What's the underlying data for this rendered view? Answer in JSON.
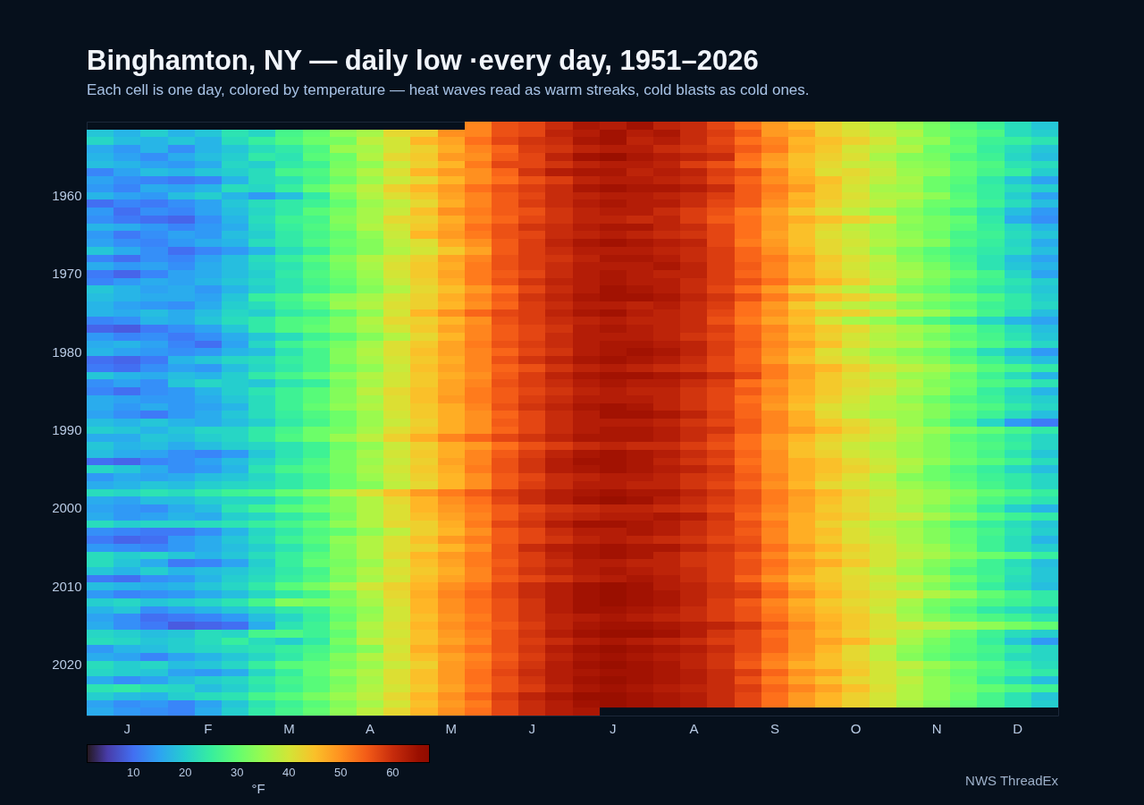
{
  "chart_data": {
    "type": "heatmap",
    "title": "Binghamton, NY — daily low ·every day, 1951–2026",
    "subtitle": "Each cell is one day, colored by temperature — heat waves read as warm streaks, cold blasts as cold ones.",
    "categories": [
      null,
      "J",
      null,
      null,
      "F",
      null,
      null,
      "M",
      null,
      null,
      "A",
      null,
      null,
      "M",
      null,
      null,
      "J",
      null,
      null,
      "J",
      null,
      null,
      "A",
      null,
      null,
      "S",
      null,
      null,
      "O",
      null,
      null,
      "N",
      null,
      null,
      "D",
      null
    ],
    "y_categories": [
      null,
      null,
      null,
      null,
      null,
      null,
      null,
      null,
      null,
      "1960",
      null,
      null,
      null,
      null,
      null,
      null,
      null,
      null,
      null,
      "1970",
      null,
      null,
      null,
      null,
      null,
      null,
      null,
      null,
      null,
      "1980",
      null,
      null,
      null,
      null,
      null,
      null,
      null,
      null,
      null,
      "1990",
      null,
      null,
      null,
      null,
      null,
      null,
      null,
      null,
      null,
      "2000",
      null,
      null,
      null,
      null,
      null,
      null,
      null,
      null,
      null,
      "2010",
      null,
      null,
      null,
      null,
      null,
      null,
      null,
      null,
      null,
      "2020",
      null,
      null,
      null,
      null,
      null,
      null
    ],
    "cells": [
      [
        null,
        null,
        null,
        null,
        null,
        null,
        null,
        null,
        null,
        null,
        null,
        null,
        null,
        null,
        51,
        56,
        57,
        60,
        63,
        62,
        64,
        61,
        60,
        57,
        53,
        49,
        46,
        43,
        40,
        37,
        35,
        32,
        29,
        26,
        22,
        19
      ],
      [
        19,
        17,
        20,
        17,
        19,
        23,
        21,
        27,
        30,
        34,
        36,
        42,
        43,
        50,
        51,
        56,
        57,
        61,
        62,
        64,
        62,
        63,
        60,
        58,
        55,
        49,
        48,
        43,
        41,
        38,
        37,
        32,
        30,
        28,
        22,
        20
      ],
      [
        21,
        18,
        17,
        19,
        17,
        22,
        25,
        28,
        31,
        32,
        38,
        40,
        46,
        48,
        53,
        57,
        59,
        60,
        63,
        64,
        61,
        62,
        60,
        57,
        53,
        51,
        46,
        45,
        43,
        40,
        35,
        34,
        29,
        26,
        25,
        23
      ],
      [
        16,
        14,
        17,
        13,
        17,
        19,
        22,
        24,
        28,
        35,
        36,
        40,
        43,
        47,
        51,
        54,
        58,
        59,
        61,
        62,
        62,
        60,
        59,
        58,
        55,
        52,
        47,
        44,
        40,
        38,
        37,
        31,
        30,
        25,
        22,
        19
      ],
      [
        17,
        15,
        13,
        16,
        18,
        20,
        24,
        23,
        29,
        31,
        37,
        42,
        44,
        49,
        50,
        55,
        57,
        61,
        64,
        65,
        63,
        62,
        61,
        60,
        53,
        49,
        45,
        43,
        41,
        36,
        33,
        32,
        28,
        26,
        21,
        18
      ],
      [
        18,
        17,
        15,
        14,
        16,
        21,
        20,
        24,
        26,
        32,
        34,
        39,
        43,
        46,
        52,
        57,
        57,
        59,
        61,
        62,
        62,
        61,
        58,
        56,
        52,
        48,
        45,
        42,
        39,
        38,
        34,
        33,
        30,
        28,
        23,
        22
      ],
      [
        12,
        15,
        18,
        17,
        19,
        20,
        22,
        27,
        28,
        33,
        37,
        41,
        46,
        49,
        50,
        54,
        59,
        62,
        63,
        63,
        61,
        62,
        61,
        58,
        56,
        51,
        46,
        41,
        42,
        39,
        35,
        34,
        30,
        27,
        25,
        20
      ],
      [
        15,
        13,
        12,
        11,
        12,
        17,
        22,
        23,
        27,
        31,
        35,
        39,
        42,
        46,
        50,
        53,
        56,
        58,
        61,
        62,
        62,
        61,
        60,
        57,
        54,
        50,
        47,
        45,
        41,
        38,
        36,
        31,
        29,
        24,
        19,
        15
      ],
      [
        14,
        12,
        16,
        15,
        17,
        22,
        21,
        25,
        30,
        34,
        38,
        43,
        46,
        49,
        53,
        56,
        58,
        60,
        63,
        64,
        63,
        63,
        62,
        60,
        55,
        52,
        49,
        44,
        40,
        36,
        35,
        31,
        28,
        25,
        22,
        20
      ],
      [
        17,
        15,
        14,
        18,
        20,
        17,
        14,
        18,
        24,
        32,
        37,
        41,
        44,
        48,
        51,
        55,
        57,
        60,
        61,
        62,
        62,
        61,
        60,
        58,
        55,
        51,
        46,
        44,
        41,
        37,
        37,
        34,
        29,
        25,
        20,
        15
      ],
      [
        10,
        12,
        11,
        13,
        15,
        19,
        22,
        24,
        26,
        30,
        35,
        38,
        42,
        47,
        51,
        55,
        58,
        60,
        62,
        63,
        62,
        62,
        60,
        57,
        55,
        50,
        47,
        43,
        40,
        38,
        35,
        31,
        30,
        26,
        22,
        18
      ],
      [
        14,
        10,
        13,
        12,
        15,
        18,
        21,
        24,
        29,
        32,
        36,
        39,
        45,
        50,
        52,
        55,
        56,
        59,
        61,
        62,
        62,
        60,
        58,
        56,
        52,
        48,
        44,
        41,
        38,
        35,
        33,
        30,
        27,
        23,
        18,
        14
      ],
      [
        13,
        11,
        10,
        9,
        13,
        17,
        22,
        26,
        27,
        33,
        36,
        42,
        43,
        47,
        51,
        54,
        57,
        59,
        61,
        61,
        60,
        61,
        58,
        55,
        53,
        49,
        47,
        45,
        43,
        40,
        34,
        32,
        30,
        24,
        16,
        13
      ],
      [
        17,
        16,
        14,
        12,
        14,
        16,
        21,
        25,
        28,
        32,
        37,
        40,
        44,
        48,
        53,
        56,
        59,
        60,
        62,
        63,
        63,
        61,
        60,
        57,
        53,
        49,
        45,
        42,
        38,
        36,
        33,
        32,
        29,
        25,
        21,
        17
      ],
      [
        14,
        11,
        13,
        15,
        14,
        18,
        20,
        24,
        27,
        30,
        34,
        39,
        46,
        49,
        52,
        56,
        57,
        60,
        61,
        62,
        61,
        60,
        59,
        57,
        53,
        48,
        45,
        41,
        39,
        36,
        34,
        31,
        27,
        26,
        22,
        19
      ],
      [
        15,
        13,
        12,
        14,
        16,
        17,
        22,
        24,
        28,
        31,
        33,
        38,
        41,
        47,
        50,
        55,
        58,
        61,
        63,
        64,
        63,
        62,
        61,
        57,
        52,
        49,
        45,
        42,
        40,
        37,
        35,
        33,
        28,
        25,
        21,
        16
      ],
      [
        19,
        16,
        13,
        10,
        12,
        14,
        17,
        22,
        25,
        30,
        33,
        37,
        40,
        44,
        48,
        55,
        58,
        60,
        62,
        62,
        62,
        61,
        60,
        58,
        54,
        50,
        46,
        42,
        39,
        35,
        32,
        29,
        26,
        24,
        22,
        18
      ],
      [
        12,
        10,
        13,
        12,
        15,
        18,
        22,
        25,
        29,
        33,
        37,
        40,
        43,
        48,
        51,
        56,
        58,
        59,
        61,
        63,
        63,
        62,
        60,
        58,
        54,
        52,
        48,
        44,
        41,
        38,
        33,
        30,
        27,
        23,
        18,
        15
      ],
      [
        16,
        14,
        15,
        13,
        16,
        18,
        21,
        23,
        27,
        32,
        36,
        41,
        44,
        47,
        52,
        56,
        58,
        60,
        62,
        62,
        62,
        63,
        61,
        58,
        55,
        51,
        47,
        43,
        40,
        37,
        35,
        32,
        28,
        23,
        19,
        17
      ],
      [
        11,
        9,
        12,
        15,
        16,
        18,
        20,
        24,
        28,
        31,
        35,
        40,
        44,
        48,
        52,
        55,
        57,
        60,
        62,
        63,
        62,
        61,
        61,
        58,
        54,
        51,
        47,
        44,
        41,
        38,
        36,
        33,
        30,
        27,
        21,
        15
      ],
      [
        12,
        14,
        16,
        15,
        17,
        19,
        21,
        23,
        27,
        30,
        34,
        39,
        43,
        47,
        52,
        56,
        59,
        61,
        62,
        63,
        62,
        62,
        60,
        58,
        56,
        53,
        49,
        46,
        43,
        39,
        34,
        32,
        28,
        26,
        23,
        20
      ],
      [
        19,
        17,
        15,
        16,
        14,
        17,
        20,
        23,
        26,
        29,
        33,
        37,
        42,
        45,
        49,
        53,
        57,
        60,
        62,
        64,
        63,
        62,
        60,
        57,
        53,
        49,
        44,
        41,
        38,
        35,
        32,
        30,
        27,
        24,
        22,
        19
      ],
      [
        18,
        17,
        16,
        16,
        15,
        19,
        25,
        27,
        31,
        34,
        36,
        40,
        43,
        47,
        51,
        55,
        59,
        61,
        63,
        64,
        64,
        63,
        61,
        59,
        56,
        52,
        48,
        45,
        43,
        40,
        36,
        33,
        31,
        28,
        24,
        20
      ],
      [
        17,
        15,
        14,
        13,
        16,
        20,
        22,
        26,
        29,
        35,
        37,
        41,
        43,
        46,
        50,
        54,
        58,
        60,
        62,
        62,
        61,
        62,
        60,
        58,
        53,
        49,
        44,
        40,
        38,
        36,
        33,
        31,
        29,
        26,
        24,
        21
      ],
      [
        17,
        16,
        18,
        16,
        18,
        21,
        20,
        24,
        26,
        30,
        34,
        40,
        46,
        50,
        54,
        57,
        58,
        61,
        63,
        64,
        62,
        61,
        60,
        57,
        53,
        50,
        46,
        44,
        43,
        40,
        37,
        35,
        31,
        27,
        23,
        18
      ],
      [
        12,
        13,
        17,
        16,
        19,
        22,
        24,
        28,
        29,
        33,
        37,
        42,
        43,
        46,
        50,
        56,
        58,
        60,
        61,
        62,
        61,
        61,
        60,
        56,
        52,
        48,
        45,
        40,
        36,
        34,
        31,
        28,
        24,
        21,
        17,
        15
      ],
      [
        9,
        8,
        11,
        13,
        15,
        19,
        24,
        28,
        30,
        33,
        36,
        40,
        44,
        48,
        51,
        55,
        57,
        59,
        62,
        63,
        62,
        61,
        60,
        58,
        54,
        51,
        47,
        44,
        42,
        38,
        36,
        34,
        30,
        26,
        22,
        18
      ],
      [
        14,
        12,
        13,
        11,
        13,
        16,
        19,
        22,
        26,
        29,
        33,
        37,
        42,
        46,
        51,
        55,
        57,
        60,
        62,
        62,
        62,
        61,
        59,
        57,
        54,
        50,
        46,
        43,
        40,
        37,
        35,
        32,
        29,
        27,
        23,
        19
      ],
      [
        16,
        17,
        15,
        12,
        10,
        15,
        21,
        26,
        29,
        32,
        36,
        41,
        44,
        48,
        52,
        56,
        58,
        60,
        62,
        63,
        63,
        62,
        61,
        58,
        55,
        51,
        48,
        45,
        41,
        38,
        37,
        34,
        31,
        28,
        25,
        21
      ],
      [
        17,
        15,
        14,
        13,
        14,
        17,
        18,
        23,
        27,
        33,
        37,
        41,
        45,
        48,
        51,
        54,
        57,
        59,
        62,
        63,
        64,
        63,
        61,
        58,
        54,
        50,
        46,
        41,
        38,
        35,
        33,
        31,
        27,
        22,
        18,
        14
      ],
      [
        10,
        9,
        11,
        17,
        19,
        21,
        22,
        25,
        27,
        33,
        36,
        40,
        44,
        47,
        51,
        56,
        59,
        61,
        63,
        64,
        63,
        62,
        60,
        57,
        54,
        49,
        45,
        42,
        40,
        37,
        35,
        33,
        29,
        26,
        21,
        18
      ],
      [
        11,
        10,
        13,
        15,
        14,
        18,
        21,
        24,
        27,
        31,
        34,
        39,
        45,
        48,
        51,
        54,
        56,
        59,
        61,
        62,
        61,
        60,
        59,
        57,
        55,
        52,
        48,
        46,
        43,
        40,
        38,
        36,
        33,
        29,
        27,
        24
      ],
      [
        19,
        17,
        16,
        18,
        17,
        20,
        24,
        27,
        30,
        34,
        37,
        40,
        44,
        47,
        50,
        55,
        58,
        61,
        63,
        64,
        64,
        63,
        62,
        60,
        57,
        52,
        48,
        44,
        41,
        38,
        35,
        34,
        30,
        26,
        22,
        17
      ],
      [
        13,
        15,
        13,
        19,
        21,
        20,
        19,
        23,
        25,
        32,
        36,
        40,
        44,
        48,
        51,
        56,
        58,
        60,
        62,
        63,
        62,
        62,
        60,
        58,
        53,
        50,
        47,
        44,
        42,
        40,
        37,
        33,
        31,
        28,
        26,
        23
      ],
      [
        12,
        10,
        13,
        14,
        17,
        20,
        23,
        26,
        29,
        33,
        38,
        42,
        45,
        48,
        52,
        55,
        57,
        59,
        61,
        62,
        61,
        61,
        59,
        57,
        55,
        51,
        47,
        44,
        41,
        39,
        36,
        34,
        30,
        25,
        21,
        17
      ],
      [
        16,
        15,
        14,
        14,
        16,
        19,
        22,
        26,
        29,
        33,
        36,
        41,
        45,
        49,
        52,
        55,
        58,
        60,
        62,
        62,
        62,
        61,
        59,
        57,
        53,
        50,
        46,
        43,
        40,
        37,
        34,
        31,
        28,
        26,
        22,
        20
      ],
      [
        16,
        14,
        16,
        14,
        15,
        17,
        22,
        26,
        30,
        34,
        37,
        41,
        44,
        47,
        51,
        56,
        59,
        61,
        63,
        64,
        63,
        61,
        59,
        57,
        54,
        49,
        45,
        41,
        39,
        37,
        36,
        33,
        30,
        28,
        24,
        21
      ],
      [
        15,
        13,
        11,
        14,
        16,
        19,
        22,
        25,
        28,
        31,
        35,
        40,
        44,
        47,
        50,
        54,
        57,
        60,
        62,
        64,
        64,
        63,
        61,
        58,
        54,
        51,
        47,
        42,
        38,
        36,
        35,
        33,
        29,
        26,
        22,
        18
      ],
      [
        18,
        17,
        19,
        17,
        16,
        18,
        20,
        24,
        27,
        31,
        35,
        39,
        43,
        47,
        50,
        55,
        57,
        60,
        62,
        62,
        62,
        61,
        59,
        57,
        55,
        51,
        47,
        44,
        42,
        39,
        35,
        31,
        27,
        21,
        14,
        11
      ],
      [
        20,
        19,
        17,
        19,
        21,
        21,
        24,
        27,
        31,
        32,
        36,
        41,
        44,
        47,
        50,
        54,
        57,
        60,
        62,
        63,
        63,
        62,
        60,
        59,
        55,
        51,
        49,
        46,
        43,
        40,
        37,
        35,
        32,
        30,
        27,
        24
      ],
      [
        16,
        16,
        19,
        18,
        20,
        21,
        24,
        28,
        31,
        35,
        38,
        43,
        47,
        51,
        54,
        57,
        59,
        61,
        63,
        63,
        63,
        62,
        60,
        57,
        53,
        49,
        46,
        43,
        41,
        39,
        36,
        33,
        29,
        27,
        24,
        21
      ],
      [
        19,
        17,
        18,
        16,
        18,
        20,
        21,
        23,
        26,
        31,
        34,
        39,
        43,
        47,
        49,
        53,
        56,
        58,
        60,
        61,
        60,
        60,
        58,
        56,
        53,
        49,
        45,
        42,
        39,
        37,
        35,
        33,
        30,
        28,
        25,
        21
      ],
      [
        18,
        16,
        15,
        13,
        12,
        14,
        19,
        23,
        26,
        32,
        36,
        40,
        44,
        47,
        51,
        55,
        58,
        61,
        63,
        64,
        63,
        62,
        60,
        58,
        54,
        50,
        45,
        43,
        40,
        38,
        35,
        33,
        30,
        27,
        23,
        19
      ],
      [
        10,
        9,
        12,
        13,
        15,
        18,
        21,
        24,
        28,
        32,
        35,
        39,
        43,
        48,
        51,
        56,
        59,
        62,
        64,
        64,
        63,
        61,
        59,
        57,
        53,
        50,
        47,
        45,
        42,
        39,
        37,
        34,
        31,
        29,
        26,
        22
      ],
      [
        21,
        19,
        16,
        13,
        14,
        17,
        23,
        27,
        29,
        32,
        36,
        40,
        44,
        47,
        52,
        56,
        59,
        62,
        63,
        64,
        63,
        62,
        61,
        59,
        54,
        50,
        47,
        45,
        43,
        40,
        36,
        31,
        28,
        25,
        21,
        18
      ],
      [
        14,
        16,
        15,
        16,
        18,
        19,
        21,
        24,
        27,
        31,
        35,
        39,
        43,
        46,
        50,
        55,
        57,
        60,
        61,
        62,
        62,
        61,
        59,
        58,
        55,
        51,
        47,
        44,
        41,
        37,
        33,
        31,
        29,
        26,
        24,
        21
      ],
      [
        16,
        17,
        19,
        18,
        20,
        21,
        22,
        24,
        27,
        31,
        33,
        38,
        42,
        46,
        50,
        55,
        58,
        60,
        62,
        62,
        61,
        61,
        59,
        57,
        54,
        50,
        46,
        42,
        40,
        38,
        35,
        33,
        30,
        27,
        24,
        21
      ],
      [
        22,
        21,
        23,
        22,
        24,
        26,
        27,
        30,
        33,
        37,
        41,
        45,
        49,
        52,
        55,
        58,
        60,
        62,
        63,
        64,
        63,
        63,
        61,
        59,
        56,
        52,
        49,
        46,
        43,
        40,
        37,
        35,
        33,
        30,
        28,
        25
      ],
      [
        16,
        15,
        18,
        18,
        20,
        21,
        21,
        25,
        29,
        33,
        37,
        42,
        46,
        50,
        53,
        57,
        60,
        62,
        64,
        65,
        64,
        62,
        60,
        58,
        56,
        52,
        48,
        45,
        42,
        39,
        37,
        35,
        32,
        28,
        25,
        23
      ],
      [
        15,
        14,
        13,
        16,
        18,
        23,
        26,
        29,
        31,
        33,
        37,
        41,
        46,
        49,
        52,
        55,
        57,
        59,
        60,
        61,
        61,
        60,
        59,
        57,
        55,
        51,
        48,
        44,
        42,
        39,
        36,
        33,
        30,
        25,
        20,
        17
      ],
      [
        16,
        14,
        15,
        17,
        16,
        20,
        21,
        24,
        27,
        32,
        37,
        41,
        45,
        48,
        51,
        55,
        58,
        60,
        61,
        62,
        62,
        63,
        62,
        59,
        54,
        50,
        47,
        45,
        43,
        40,
        39,
        36,
        33,
        29,
        26,
        24
      ],
      [
        22,
        20,
        21,
        21,
        22,
        23,
        25,
        27,
        30,
        34,
        37,
        42,
        43,
        47,
        52,
        57,
        59,
        62,
        64,
        64,
        63,
        62,
        60,
        58,
        56,
        52,
        47,
        43,
        40,
        37,
        35,
        32,
        28,
        25,
        22,
        19
      ],
      [
        13,
        12,
        11,
        11,
        13,
        17,
        21,
        24,
        28,
        30,
        34,
        38,
        43,
        46,
        50,
        55,
        57,
        60,
        62,
        62,
        63,
        62,
        60,
        58,
        55,
        51,
        47,
        45,
        41,
        38,
        36,
        33,
        30,
        27,
        23,
        20
      ],
      [
        11,
        9,
        10,
        14,
        16,
        19,
        22,
        26,
        29,
        34,
        37,
        41,
        45,
        49,
        52,
        55,
        57,
        59,
        61,
        62,
        61,
        60,
        59,
        57,
        56,
        51,
        47,
        44,
        41,
        39,
        36,
        33,
        30,
        26,
        22,
        17
      ],
      [
        14,
        13,
        12,
        14,
        16,
        18,
        20,
        23,
        27,
        33,
        37,
        41,
        43,
        46,
        50,
        56,
        60,
        62,
        63,
        64,
        63,
        63,
        61,
        59,
        57,
        53,
        49,
        46,
        43,
        40,
        37,
        35,
        31,
        26,
        22,
        20
      ],
      [
        22,
        20,
        21,
        19,
        17,
        19,
        22,
        25,
        29,
        33,
        37,
        42,
        46,
        49,
        52,
        56,
        58,
        61,
        63,
        64,
        63,
        61,
        59,
        58,
        55,
        51,
        47,
        44,
        42,
        40,
        38,
        36,
        33,
        31,
        29,
        25
      ],
      [
        22,
        19,
        16,
        11,
        12,
        15,
        20,
        25,
        30,
        32,
        35,
        40,
        45,
        48,
        52,
        55,
        58,
        60,
        62,
        62,
        61,
        61,
        59,
        58,
        56,
        53,
        49,
        47,
        44,
        40,
        36,
        33,
        30,
        26,
        22,
        18
      ],
      [
        19,
        17,
        20,
        17,
        18,
        19,
        21,
        24,
        27,
        33,
        37,
        41,
        44,
        47,
        51,
        56,
        59,
        61,
        62,
        63,
        62,
        61,
        60,
        58,
        56,
        52,
        48,
        44,
        41,
        38,
        35,
        32,
        28,
        26,
        23,
        19
      ],
      [
        11,
        10,
        13,
        14,
        17,
        20,
        22,
        25,
        28,
        32,
        36,
        40,
        45,
        48,
        51,
        55,
        57,
        59,
        61,
        62,
        63,
        62,
        60,
        58,
        54,
        50,
        46,
        44,
        42,
        40,
        38,
        35,
        31,
        27,
        22,
        19
      ],
      [
        18,
        17,
        16,
        17,
        19,
        21,
        24,
        29,
        32,
        36,
        40,
        43,
        46,
        50,
        53,
        57,
        60,
        62,
        64,
        65,
        64,
        62,
        61,
        59,
        57,
        53,
        48,
        45,
        42,
        39,
        36,
        33,
        29,
        25,
        21,
        18
      ],
      [
        14,
        12,
        13,
        14,
        16,
        18,
        21,
        24,
        27,
        32,
        37,
        42,
        47,
        51,
        54,
        57,
        60,
        62,
        64,
        65,
        64,
        63,
        61,
        59,
        58,
        54,
        50,
        46,
        43,
        41,
        40,
        37,
        34,
        30,
        27,
        24
      ],
      [
        20,
        21,
        19,
        20,
        21,
        23,
        27,
        33,
        32,
        33,
        36,
        41,
        46,
        50,
        53,
        56,
        59,
        62,
        64,
        65,
        64,
        63,
        61,
        58,
        55,
        51,
        47,
        44,
        42,
        40,
        36,
        32,
        30,
        28,
        26,
        24
      ],
      [
        17,
        19,
        13,
        15,
        17,
        19,
        21,
        24,
        26,
        31,
        34,
        40,
        46,
        50,
        53,
        56,
        59,
        62,
        64,
        64,
        63,
        62,
        60,
        58,
        56,
        52,
        48,
        45,
        43,
        39,
        35,
        31,
        28,
        24,
        22,
        20
      ],
      [
        15,
        13,
        10,
        11,
        12,
        14,
        18,
        21,
        25,
        30,
        35,
        40,
        45,
        49,
        52,
        56,
        59,
        61,
        62,
        63,
        62,
        61,
        60,
        58,
        56,
        53,
        49,
        46,
        44,
        41,
        36,
        33,
        30,
        28,
        26,
        23
      ],
      [
        16,
        13,
        11,
        8,
        9,
        10,
        16,
        23,
        26,
        32,
        37,
        41,
        46,
        50,
        53,
        55,
        58,
        61,
        63,
        64,
        64,
        63,
        62,
        61,
        59,
        55,
        51,
        47,
        44,
        41,
        40,
        38,
        36,
        34,
        32,
        30
      ],
      [
        21,
        20,
        18,
        19,
        22,
        21,
        27,
        28,
        26,
        30,
        36,
        40,
        45,
        49,
        52,
        56,
        59,
        62,
        64,
        65,
        65,
        64,
        62,
        59,
        57,
        53,
        50,
        46,
        43,
        40,
        37,
        34,
        30,
        26,
        22,
        20
      ],
      [
        22,
        21,
        19,
        20,
        22,
        25,
        22,
        20,
        24,
        32,
        38,
        41,
        45,
        48,
        51,
        56,
        58,
        60,
        62,
        63,
        62,
        61,
        60,
        58,
        57,
        54,
        50,
        48,
        46,
        42,
        36,
        32,
        29,
        25,
        19,
        14
      ],
      [
        14,
        17,
        18,
        20,
        21,
        22,
        23,
        25,
        27,
        30,
        33,
        40,
        47,
        50,
        53,
        56,
        59,
        62,
        64,
        65,
        64,
        63,
        62,
        60,
        57,
        54,
        50,
        46,
        42,
        38,
        34,
        31,
        29,
        27,
        24,
        21
      ],
      [
        16,
        15,
        12,
        15,
        17,
        19,
        21,
        24,
        28,
        33,
        37,
        41,
        45,
        48,
        51,
        55,
        58,
        61,
        63,
        64,
        63,
        62,
        61,
        59,
        56,
        52,
        49,
        45,
        42,
        38,
        33,
        30,
        28,
        26,
        22,
        21
      ],
      [
        22,
        20,
        21,
        18,
        19,
        21,
        25,
        29,
        30,
        32,
        35,
        39,
        43,
        49,
        52,
        56,
        59,
        62,
        64,
        65,
        64,
        63,
        61,
        59,
        55,
        51,
        47,
        45,
        43,
        40,
        38,
        35,
        32,
        29,
        25,
        22
      ],
      [
        21,
        20,
        19,
        15,
        14,
        16,
        21,
        25,
        30,
        34,
        37,
        41,
        45,
        49,
        53,
        57,
        60,
        62,
        63,
        64,
        64,
        63,
        62,
        60,
        58,
        54,
        50,
        48,
        44,
        40,
        36,
        33,
        30,
        28,
        26,
        24
      ],
      [
        16,
        13,
        15,
        18,
        20,
        21,
        24,
        27,
        29,
        32,
        36,
        41,
        45,
        49,
        53,
        56,
        59,
        62,
        64,
        65,
        64,
        63,
        62,
        60,
        56,
        52,
        48,
        45,
        42,
        40,
        38,
        34,
        31,
        26,
        22,
        18
      ],
      [
        23,
        24,
        22,
        21,
        18,
        20,
        23,
        26,
        29,
        33,
        37,
        40,
        44,
        48,
        52,
        56,
        58,
        61,
        63,
        64,
        63,
        62,
        61,
        60,
        58,
        54,
        51,
        48,
        45,
        41,
        37,
        34,
        32,
        30,
        28,
        26
      ],
      [
        20,
        18,
        17,
        20,
        22,
        23,
        27,
        29,
        32,
        35,
        38,
        42,
        46,
        50,
        54,
        58,
        61,
        63,
        65,
        65,
        64,
        63,
        62,
        60,
        57,
        53,
        49,
        46,
        43,
        40,
        37,
        34,
        31,
        27,
        23,
        19
      ],
      [
        15,
        13,
        14,
        12,
        15,
        19,
        23,
        26,
        29,
        33,
        36,
        40,
        45,
        49,
        52,
        57,
        60,
        62,
        64,
        65,
        64,
        63,
        62,
        60,
        57,
        53,
        49,
        46,
        43,
        40,
        36,
        33,
        30,
        27,
        23,
        20
      ],
      [
        16,
        14,
        13,
        12,
        16,
        20,
        24,
        27,
        30,
        34,
        38,
        42,
        46,
        50,
        53,
        57,
        60,
        62,
        63,
        null,
        null,
        null,
        null,
        null,
        null,
        null,
        null,
        null,
        null,
        null,
        null,
        null,
        null,
        null,
        null,
        null
      ]
    ],
    "clim": [
      1,
      67
    ],
    "cticks": [
      10,
      20,
      30,
      40,
      50,
      60
    ],
    "clabel": "°F",
    "annotations": [
      "NWS ThreadEx"
    ]
  }
}
